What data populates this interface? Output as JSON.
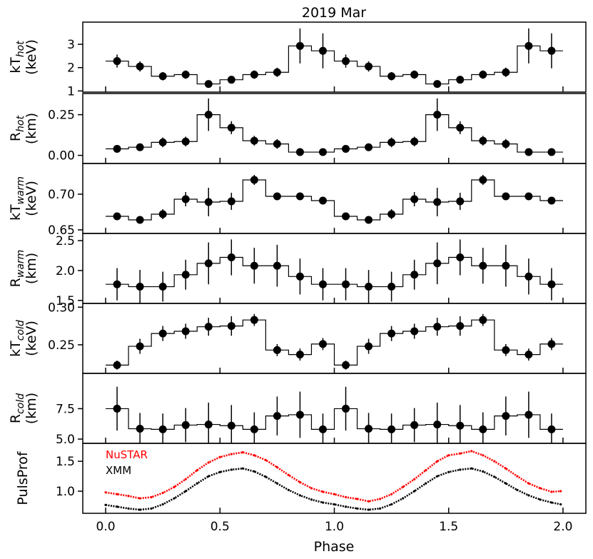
{
  "figure": {
    "title": "2019 Mar",
    "xlabel": "Phase",
    "xlim": [
      -0.1,
      2.1
    ],
    "xticks": [
      "0.0",
      "0.5",
      "1.0",
      "1.5",
      "2.0"
    ]
  },
  "chart_data": [
    {
      "type": "scatter",
      "panel": "kT_hot",
      "ylabel_main": "kT",
      "ylabel_sub": "hot",
      "ylabel_unit": "(keV)",
      "ylim": [
        0.95,
        3.95
      ],
      "yticks": [
        "1",
        "2",
        "3"
      ],
      "x": [
        0.05,
        0.15,
        0.25,
        0.35,
        0.45,
        0.55,
        0.65,
        0.75,
        0.85,
        0.95,
        1.05,
        1.15,
        1.25,
        1.35,
        1.45,
        1.55,
        1.65,
        1.75,
        1.85,
        1.95
      ],
      "y": [
        2.28,
        2.05,
        1.63,
        1.7,
        1.3,
        1.48,
        1.7,
        1.8,
        2.93,
        2.72,
        2.28,
        2.05,
        1.63,
        1.7,
        1.3,
        1.48,
        1.7,
        1.8,
        2.93,
        2.72
      ],
      "yerr": [
        0.28,
        0.22,
        0.18,
        0.18,
        0.12,
        0.15,
        0.18,
        0.2,
        0.75,
        0.75,
        0.28,
        0.22,
        0.18,
        0.18,
        0.12,
        0.15,
        0.18,
        0.2,
        0.75,
        0.75
      ],
      "xerr": 0.05
    },
    {
      "type": "scatter",
      "panel": "R_hot",
      "ylabel_main": "R",
      "ylabel_sub": "hot",
      "ylabel_unit": "(km)",
      "ylim": [
        -0.05,
        0.38
      ],
      "yticks": [
        "0.00",
        "0.25"
      ],
      "x": [
        0.05,
        0.15,
        0.25,
        0.35,
        0.45,
        0.55,
        0.65,
        0.75,
        0.85,
        0.95,
        1.05,
        1.15,
        1.25,
        1.35,
        1.45,
        1.55,
        1.65,
        1.75,
        1.85,
        1.95
      ],
      "y": [
        0.04,
        0.05,
        0.08,
        0.085,
        0.25,
        0.17,
        0.09,
        0.07,
        0.02,
        0.02,
        0.04,
        0.05,
        0.08,
        0.085,
        0.25,
        0.17,
        0.09,
        0.07,
        0.02,
        0.02
      ],
      "yerr": [
        0.02,
        0.02,
        0.03,
        0.03,
        0.1,
        0.04,
        0.03,
        0.03,
        0.015,
        0.015,
        0.02,
        0.02,
        0.03,
        0.03,
        0.1,
        0.04,
        0.03,
        0.03,
        0.015,
        0.015
      ],
      "xerr": 0.05
    },
    {
      "type": "scatter",
      "panel": "kT_warm",
      "ylabel_main": "kT",
      "ylabel_sub": "warm",
      "ylabel_unit": "(keV)",
      "ylim": [
        0.645,
        0.743
      ],
      "yticks": [
        "0.65",
        "0.70"
      ],
      "x": [
        0.05,
        0.15,
        0.25,
        0.35,
        0.45,
        0.55,
        0.65,
        0.75,
        0.85,
        0.95,
        1.05,
        1.15,
        1.25,
        1.35,
        1.45,
        1.55,
        1.65,
        1.75,
        1.85,
        1.95
      ],
      "y": [
        0.669,
        0.664,
        0.672,
        0.693,
        0.689,
        0.69,
        0.72,
        0.697,
        0.697,
        0.691,
        0.669,
        0.664,
        0.672,
        0.693,
        0.689,
        0.69,
        0.72,
        0.697,
        0.697,
        0.691
      ],
      "yerr": [
        0.004,
        0.005,
        0.007,
        0.01,
        0.02,
        0.012,
        0.007,
        0.005,
        0.003,
        0.005,
        0.004,
        0.005,
        0.007,
        0.01,
        0.02,
        0.012,
        0.007,
        0.005,
        0.003,
        0.005
      ],
      "xerr": 0.05
    },
    {
      "type": "scatter",
      "panel": "R_warm",
      "ylabel_main": "R",
      "ylabel_sub": "warm",
      "ylabel_unit": "(km)",
      "ylim": [
        1.45,
        2.62
      ],
      "yticks": [
        "1.5",
        "2.0",
        "2.5"
      ],
      "x": [
        0.05,
        0.15,
        0.25,
        0.35,
        0.45,
        0.55,
        0.65,
        0.75,
        0.85,
        0.95,
        1.05,
        1.15,
        1.25,
        1.35,
        1.45,
        1.55,
        1.65,
        1.75,
        1.85,
        1.95
      ],
      "y": [
        1.77,
        1.73,
        1.73,
        1.93,
        2.12,
        2.22,
        2.08,
        2.08,
        1.9,
        1.77,
        1.77,
        1.73,
        1.73,
        1.93,
        2.12,
        2.22,
        2.08,
        2.08,
        1.9,
        1.77
      ],
      "yerr": [
        0.27,
        0.28,
        0.25,
        0.25,
        0.35,
        0.3,
        0.3,
        0.35,
        0.3,
        0.27,
        0.27,
        0.28,
        0.25,
        0.25,
        0.35,
        0.3,
        0.3,
        0.35,
        0.3,
        0.27
      ],
      "xerr": 0.05
    },
    {
      "type": "scatter",
      "panel": "kT_cold",
      "ylabel_main": "kT",
      "ylabel_sub": "cold",
      "ylabel_unit": "(keV)",
      "ylim": [
        0.212,
        0.305
      ],
      "yticks": [
        "0.25",
        "0.30"
      ],
      "x": [
        0.05,
        0.15,
        0.25,
        0.35,
        0.45,
        0.55,
        0.65,
        0.75,
        0.85,
        0.95,
        1.05,
        1.15,
        1.25,
        1.35,
        1.45,
        1.55,
        1.65,
        1.75,
        1.85,
        1.95
      ],
      "y": [
        0.223,
        0.248,
        0.265,
        0.268,
        0.274,
        0.275,
        0.283,
        0.243,
        0.237,
        0.251,
        0.223,
        0.248,
        0.265,
        0.268,
        0.274,
        0.275,
        0.283,
        0.243,
        0.237,
        0.251
      ],
      "yerr": [
        0.006,
        0.01,
        0.01,
        0.01,
        0.012,
        0.013,
        0.008,
        0.008,
        0.008,
        0.008,
        0.006,
        0.01,
        0.01,
        0.01,
        0.012,
        0.013,
        0.008,
        0.008,
        0.008,
        0.008
      ],
      "xerr": 0.05
    },
    {
      "type": "scatter",
      "panel": "R_cold",
      "ylabel_main": "R",
      "ylabel_sub": "cold",
      "ylabel_unit": "(km)",
      "ylim": [
        4.65,
        10.4
      ],
      "yticks": [
        "5.0",
        "7.5"
      ],
      "x": [
        0.05,
        0.15,
        0.25,
        0.35,
        0.45,
        0.55,
        0.65,
        0.75,
        0.85,
        0.95,
        1.05,
        1.15,
        1.25,
        1.35,
        1.45,
        1.55,
        1.65,
        1.75,
        1.85,
        1.95
      ],
      "y": [
        7.5,
        5.85,
        5.8,
        6.15,
        6.2,
        6.1,
        5.8,
        6.9,
        7.0,
        5.8,
        7.5,
        5.85,
        5.8,
        6.15,
        6.2,
        6.1,
        5.8,
        6.9,
        7.0,
        5.8
      ],
      "yerr": [
        1.8,
        1.3,
        1.3,
        1.4,
        1.8,
        1.7,
        1.4,
        1.6,
        1.9,
        1.3,
        1.8,
        1.3,
        1.3,
        1.4,
        1.8,
        1.7,
        1.4,
        1.6,
        1.9,
        1.3
      ],
      "xerr": 0.05
    },
    {
      "type": "line",
      "panel": "PulsProf",
      "ylabel_main": "PulsProf",
      "ylim": [
        0.63,
        1.8
      ],
      "yticks": [
        "1.0",
        "1.5"
      ],
      "series": [
        {
          "name": "NuSTAR",
          "color": "#ff0000",
          "x": [
            0,
            0.05,
            0.1,
            0.15,
            0.2,
            0.25,
            0.3,
            0.35,
            0.4,
            0.45,
            0.5,
            0.55,
            0.6,
            0.65,
            0.7,
            0.75,
            0.8,
            0.85,
            0.9,
            0.95,
            1.0,
            1.05,
            1.1,
            1.15,
            1.2,
            1.25,
            1.3,
            1.35,
            1.4,
            1.45,
            1.5,
            1.55,
            1.6,
            1.65,
            1.7,
            1.75,
            1.8,
            1.85,
            1.9,
            1.95,
            1.99
          ],
          "y": [
            0.98,
            0.95,
            0.92,
            0.88,
            0.9,
            0.97,
            1.07,
            1.2,
            1.35,
            1.48,
            1.57,
            1.62,
            1.65,
            1.6,
            1.52,
            1.4,
            1.27,
            1.15,
            1.05,
            0.99,
            0.95,
            0.9,
            0.87,
            0.83,
            0.87,
            0.95,
            1.07,
            1.2,
            1.35,
            1.5,
            1.6,
            1.63,
            1.67,
            1.6,
            1.5,
            1.38,
            1.25,
            1.13,
            1.05,
            0.99,
            1.0
          ]
        },
        {
          "name": "XMM",
          "color": "#000000",
          "x": [
            0,
            0.05,
            0.1,
            0.15,
            0.2,
            0.25,
            0.3,
            0.35,
            0.4,
            0.45,
            0.5,
            0.55,
            0.6,
            0.65,
            0.7,
            0.75,
            0.8,
            0.85,
            0.9,
            0.95,
            1.0,
            1.05,
            1.1,
            1.15,
            1.2,
            1.25,
            1.3,
            1.35,
            1.4,
            1.45,
            1.5,
            1.55,
            1.6,
            1.65,
            1.7,
            1.75,
            1.8,
            1.85,
            1.9,
            1.95,
            1.99
          ],
          "y": [
            0.77,
            0.74,
            0.71,
            0.69,
            0.71,
            0.78,
            0.88,
            1.0,
            1.13,
            1.25,
            1.32,
            1.36,
            1.38,
            1.33,
            1.24,
            1.13,
            1.02,
            0.93,
            0.86,
            0.81,
            0.78,
            0.74,
            0.71,
            0.69,
            0.71,
            0.78,
            0.88,
            1.0,
            1.13,
            1.25,
            1.32,
            1.36,
            1.38,
            1.33,
            1.24,
            1.13,
            1.02,
            0.93,
            0.86,
            0.81,
            0.78
          ]
        }
      ]
    }
  ]
}
